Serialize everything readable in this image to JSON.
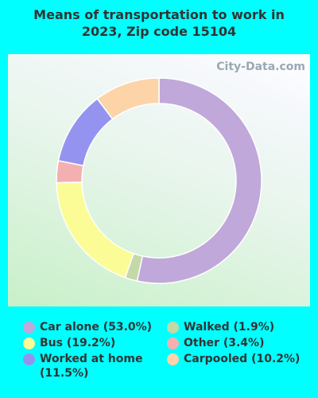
{
  "chart_data": {
    "type": "donut",
    "title": "Means of transportation to work in 2023, Zip code 15104",
    "watermark": "City-Data.com",
    "categories": [
      "Car alone",
      "Walked",
      "Bus",
      "Other",
      "Worked at home",
      "Carpooled"
    ],
    "values": [
      53.0,
      1.9,
      19.2,
      3.4,
      11.5,
      10.2
    ],
    "value_labels": [
      "(53.0%)",
      "(1.9%)",
      "(19.2%)",
      "(3.4%)",
      "(11.5%)",
      "(10.2%)"
    ],
    "colors": [
      "#c0a8da",
      "#c4d8a8",
      "#fcfc96",
      "#f4b0b0",
      "#9494f0",
      "#fcd4a8"
    ]
  }
}
